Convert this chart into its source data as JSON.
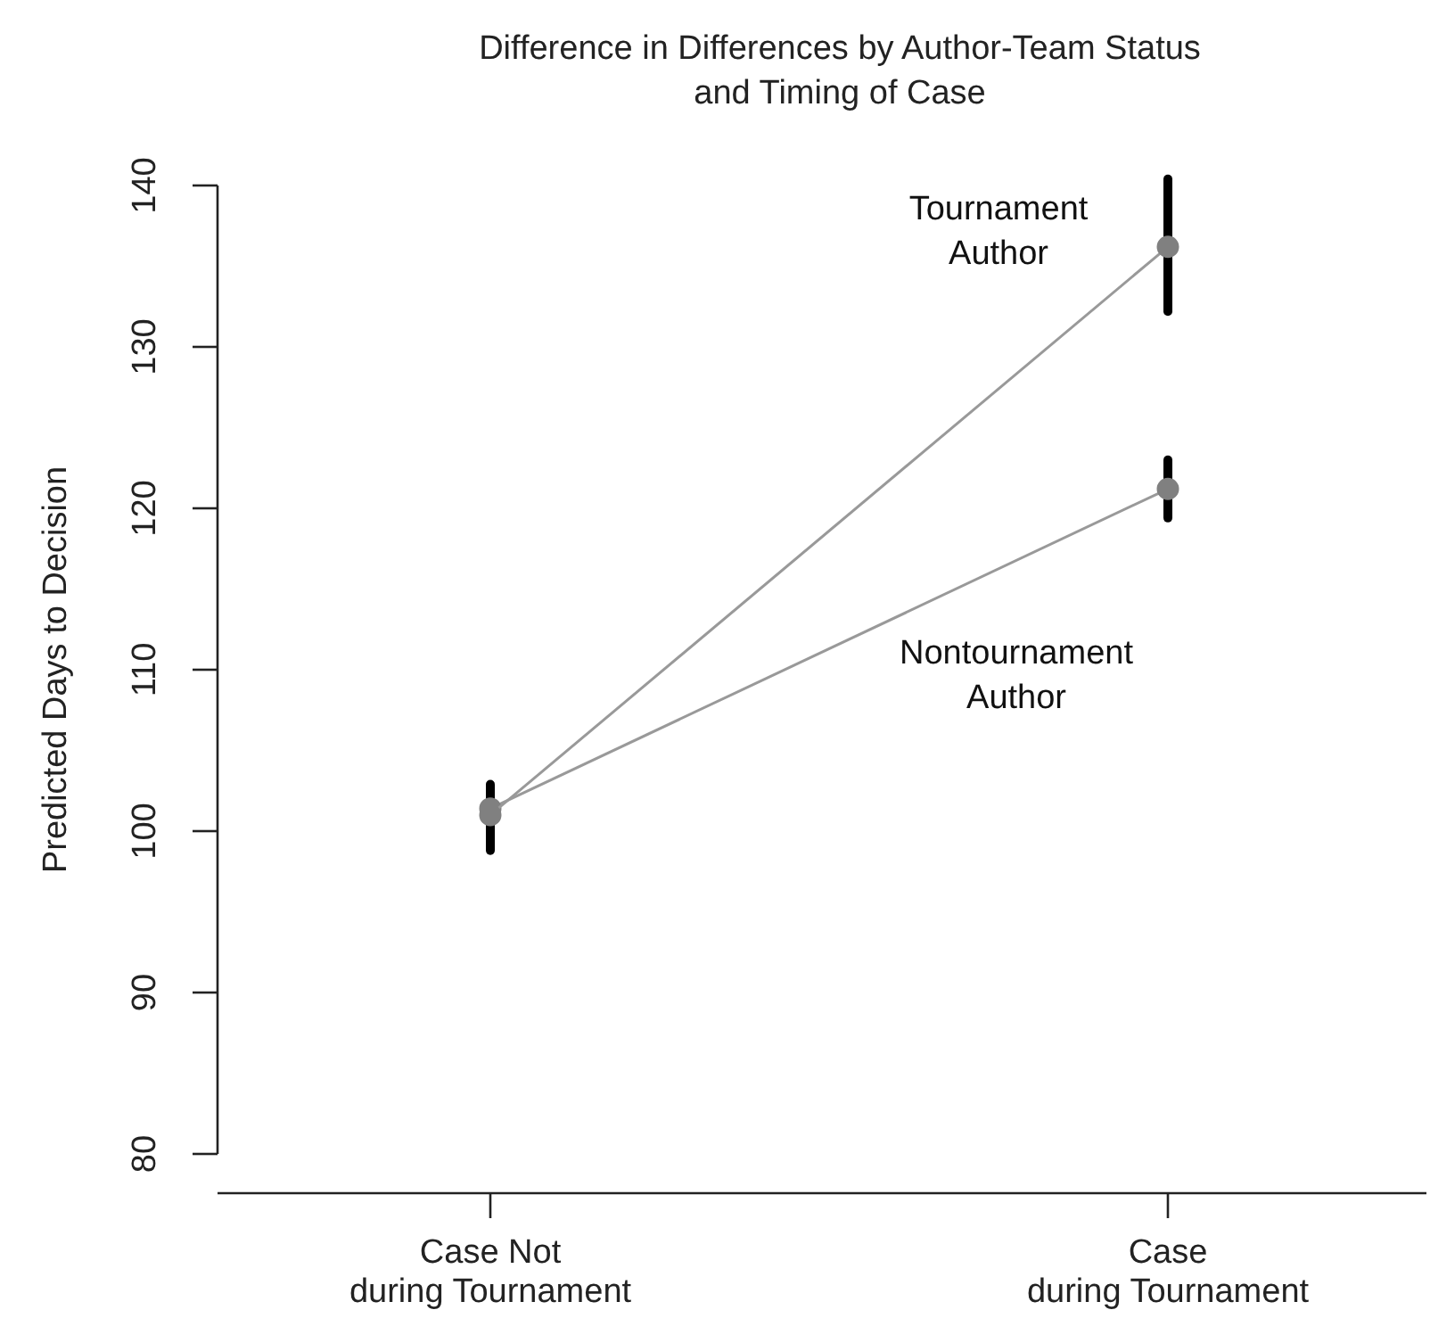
{
  "chart_data": {
    "type": "line",
    "title": "Difference in Differences by Author-Team Status\nand Timing of Case",
    "ylabel": "Predicted Days to Decision",
    "categories": [
      "Case Not\nduring Tournament",
      "Case\nduring Tournament"
    ],
    "series": [
      {
        "name": "Tournament Author",
        "color": "#808080",
        "values": [
          101.0,
          136.2
        ],
        "errors": [
          [
            98.8,
            102.9
          ],
          [
            132.2,
            140.4
          ]
        ]
      },
      {
        "name": "Nontournament Author",
        "color": "#808080",
        "values": [
          101.4,
          121.2
        ],
        "errors": [
          [
            99.0,
            102.7
          ],
          [
            119.4,
            123.0
          ]
        ]
      }
    ],
    "ylim": [
      80,
      140
    ],
    "yticks": [
      80,
      90,
      100,
      110,
      120,
      130,
      140
    ],
    "grid": false,
    "legend": false,
    "marker": "circle",
    "line_style": "solid"
  }
}
